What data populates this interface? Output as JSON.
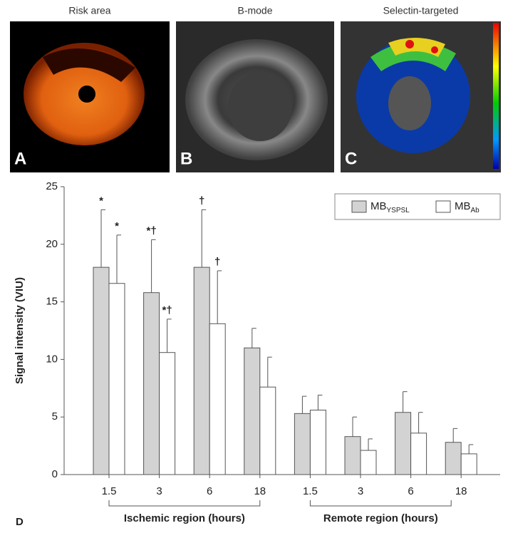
{
  "panels": [
    {
      "title": "Risk area",
      "letter": "A"
    },
    {
      "title": "B-mode",
      "letter": "B"
    },
    {
      "title": "Selectin-targeted",
      "letter": "C"
    }
  ],
  "chart_data": {
    "type": "bar",
    "panel_letter": "D",
    "y_label": "Signal intensity (VIU)",
    "categories": [
      "1.5",
      "3",
      "6",
      "18",
      "1.5",
      "3",
      "6",
      "18"
    ],
    "groups": [
      "Ischemic region (hours)",
      "Remote region (hours)"
    ],
    "series": [
      {
        "name": "MB",
        "name_sub": "YSPSL",
        "color": "#d3d3d3",
        "values": [
          18,
          15.8,
          18,
          11,
          5.3,
          3.3,
          5.4,
          2.8
        ],
        "errors": [
          5,
          4.6,
          5,
          1.7,
          1.5,
          1.7,
          1.8,
          1.2
        ],
        "markers": [
          "*",
          "*†",
          "†",
          null,
          null,
          null,
          null,
          null
        ]
      },
      {
        "name": "MB",
        "name_sub": "Ab",
        "color": "#ffffff",
        "values": [
          16.6,
          10.6,
          13.1,
          7.6,
          5.6,
          2.1,
          3.6,
          1.8
        ],
        "errors": [
          4.2,
          2.9,
          4.6,
          2.6,
          1.3,
          1.0,
          1.8,
          0.8
        ],
        "markers": [
          "*",
          "*†",
          "†",
          null,
          null,
          null,
          null,
          null
        ]
      }
    ],
    "ylim": [
      0,
      25
    ],
    "yticks": [
      0,
      5,
      10,
      15,
      20,
      25
    ],
    "legend": "upper right"
  }
}
